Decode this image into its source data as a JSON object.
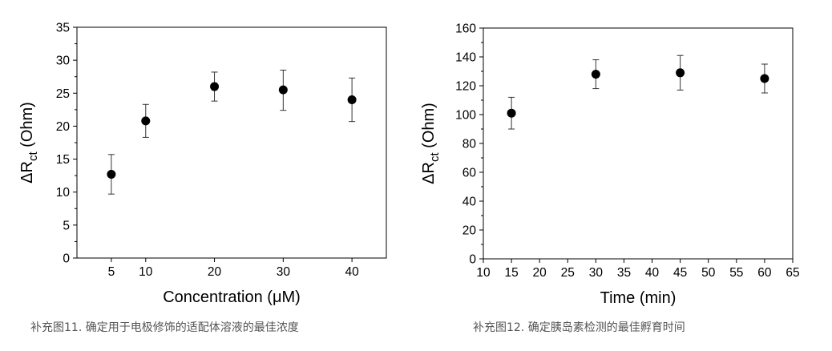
{
  "chart_data": [
    {
      "type": "scatter",
      "title": "",
      "xlabel": "Concentration (μM)",
      "ylabel_main": "ΔR",
      "ylabel_sub": "ct",
      "ylabel_unit": " (Ohm)",
      "xlim": [
        0,
        45
      ],
      "ylim": [
        0,
        35
      ],
      "xticks": [
        5,
        10,
        20,
        30,
        40
      ],
      "yticks": [
        0,
        5,
        10,
        15,
        20,
        25,
        30,
        35
      ],
      "series": [
        {
          "x": [
            5,
            10,
            20,
            30,
            40
          ],
          "y": [
            12.7,
            20.8,
            26.0,
            25.5,
            24.0
          ],
          "err_low": [
            9.7,
            18.3,
            23.8,
            22.4,
            20.7
          ],
          "err_high": [
            15.7,
            23.3,
            28.2,
            28.5,
            27.3
          ]
        }
      ],
      "grid": false
    },
    {
      "type": "scatter",
      "title": "",
      "xlabel": "Time (min)",
      "ylabel_main": "ΔR",
      "ylabel_sub": "ct",
      "ylabel_unit": " (Ohm)",
      "xlim": [
        10,
        65
      ],
      "ylim": [
        0,
        160
      ],
      "xticks": [
        10,
        15,
        20,
        25,
        30,
        35,
        40,
        45,
        50,
        55,
        60,
        65
      ],
      "yticks": [
        0,
        20,
        40,
        60,
        80,
        100,
        120,
        140,
        160
      ],
      "series": [
        {
          "x": [
            15,
            30,
            45,
            60
          ],
          "y": [
            101,
            128,
            129,
            125
          ],
          "err_low": [
            90,
            118,
            117,
            115
          ],
          "err_high": [
            112,
            138,
            141,
            135
          ]
        }
      ],
      "grid": false
    }
  ],
  "captions": {
    "chart1": "补充图11. 确定用于电极修饰的适配体溶液的最佳浓度",
    "chart2": "补充图12. 确定胰岛素检测的最佳孵育时间"
  }
}
